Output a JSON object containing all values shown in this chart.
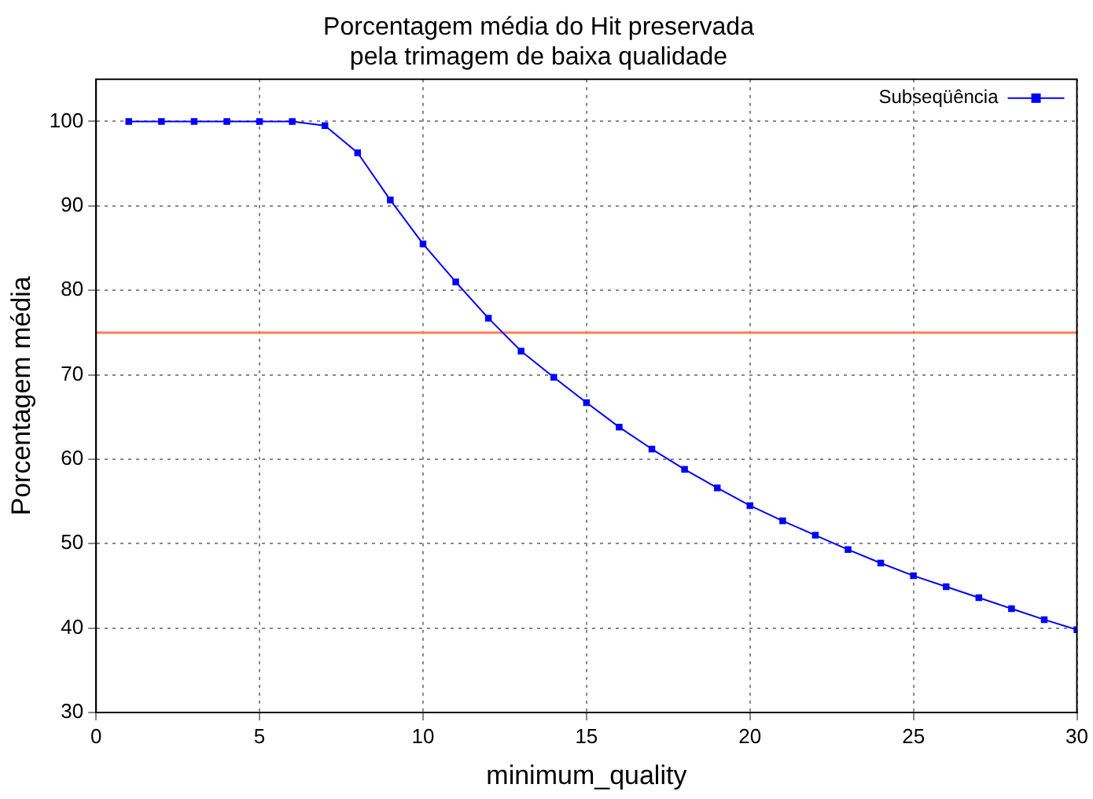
{
  "chart_data": {
    "type": "line",
    "title": [
      "Porcentagem média do Hit preservada",
      "pela trimagem de baixa qualidade"
    ],
    "xlabel": "minimum_quality",
    "ylabel": "Porcentagem média",
    "x": [
      1,
      2,
      3,
      4,
      5,
      6,
      7,
      8,
      9,
      10,
      11,
      12,
      13,
      14,
      15,
      16,
      17,
      18,
      19,
      20,
      21,
      22,
      23,
      24,
      25,
      26,
      27,
      28,
      29,
      30
    ],
    "series": [
      {
        "name": "Subseqüência",
        "color": "#0000ff",
        "values": [
          100,
          100,
          100,
          100,
          100,
          100,
          99.5,
          96.3,
          90.7,
          85.5,
          81.0,
          76.7,
          72.8,
          69.7,
          66.7,
          63.8,
          61.2,
          58.8,
          56.6,
          54.5,
          52.7,
          51.0,
          49.3,
          47.7,
          46.2,
          44.9,
          43.6,
          42.3,
          41.0,
          39.8
        ]
      }
    ],
    "ref_lines": [
      {
        "axis": "y",
        "value": 75,
        "color": "#ff7f50"
      }
    ],
    "xlim": [
      0,
      30
    ],
    "xticks": [
      0,
      5,
      10,
      15,
      20,
      25,
      30
    ],
    "ylim": [
      30,
      105
    ],
    "yticks": [
      30,
      40,
      50,
      60,
      70,
      80,
      90,
      100
    ],
    "grid": true,
    "legend": "top right",
    "marker": "square",
    "line_style": "solid"
  }
}
